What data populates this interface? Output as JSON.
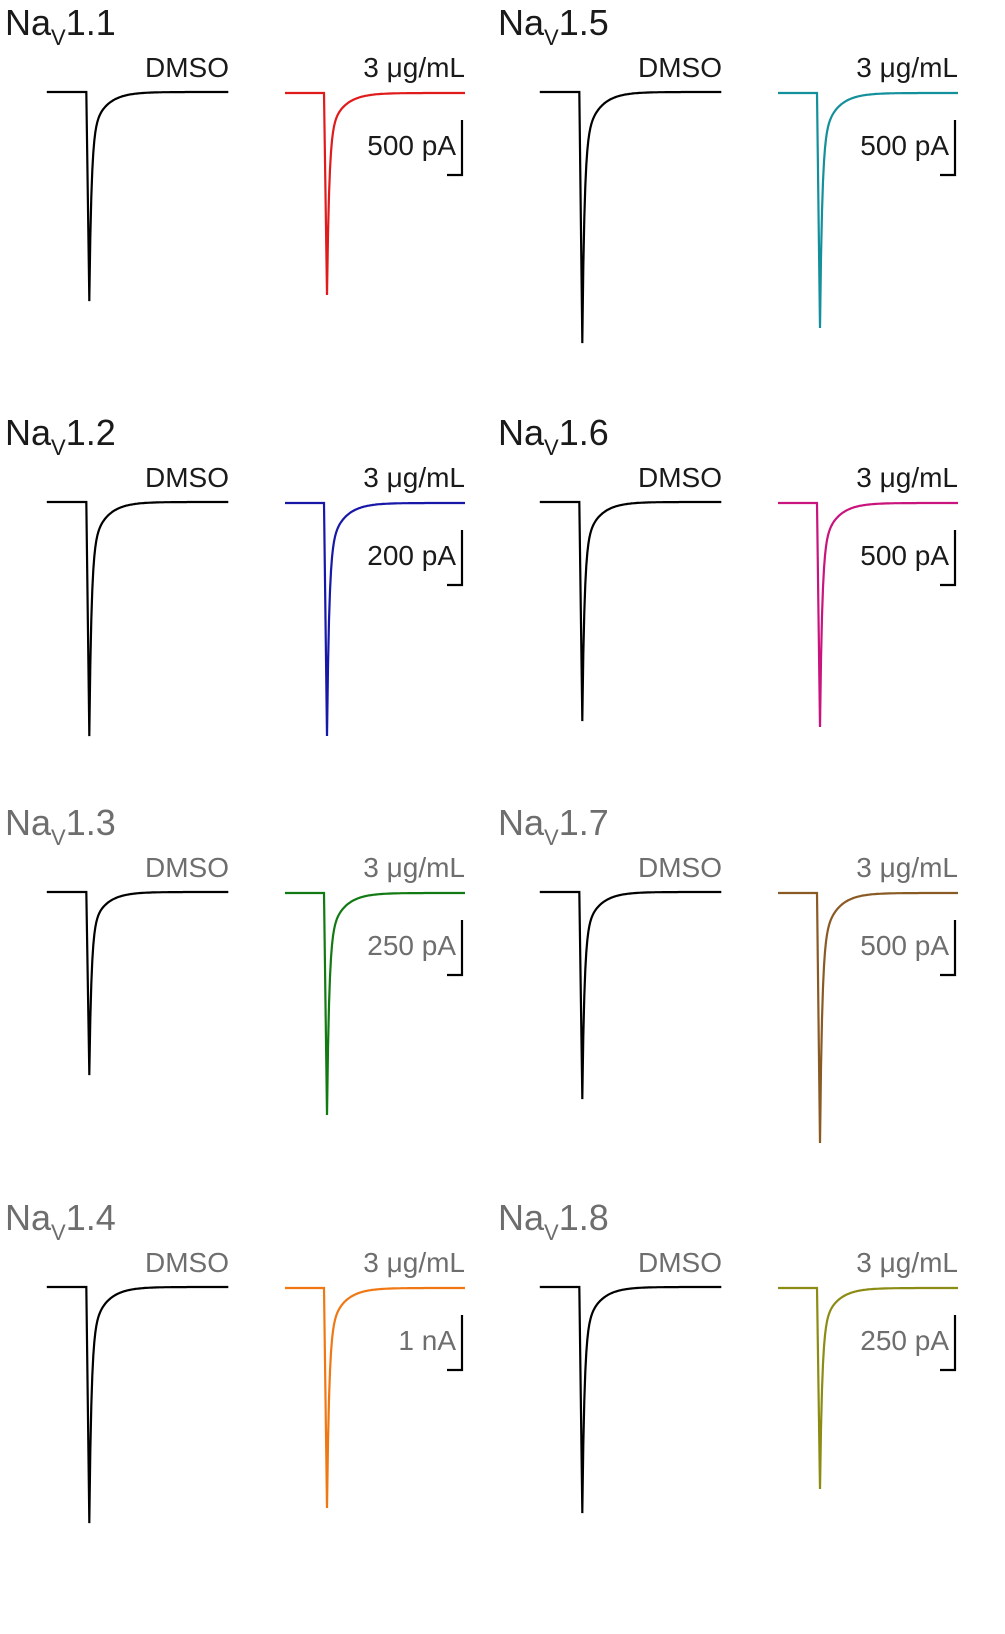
{
  "panels": [
    {
      "prefix": "Na",
      "sub": "V",
      "number": "1.1",
      "label_color": "#1a1a1a",
      "control": "DMSO",
      "treatment": "3 μg/mL",
      "scale": "500 pA",
      "color": "#e01b1b"
    },
    {
      "prefix": "Na",
      "sub": "V",
      "number": "1.5",
      "label_color": "#1a1a1a",
      "control": "DMSO",
      "treatment": "3 μg/mL",
      "scale": "500 pA",
      "color": "#13909c"
    },
    {
      "prefix": "Na",
      "sub": "V",
      "number": "1.2",
      "label_color": "#1a1a1a",
      "control": "DMSO",
      "treatment": "3 μg/mL",
      "scale": "200 pA",
      "color": "#1717a8"
    },
    {
      "prefix": "Na",
      "sub": "V",
      "number": "1.6",
      "label_color": "#1a1a1a",
      "control": "DMSO",
      "treatment": "3 μg/mL",
      "scale": "500 pA",
      "color": "#c8147c"
    },
    {
      "prefix": "Na",
      "sub": "V",
      "number": "1.3",
      "label_color": "#6e6e6e",
      "control": "DMSO",
      "treatment": "3 μg/mL",
      "scale": "250 pA",
      "color": "#127a12"
    },
    {
      "prefix": "Na",
      "sub": "V",
      "number": "1.7",
      "label_color": "#6e6e6e",
      "control": "DMSO",
      "treatment": "3 μg/mL",
      "scale": "500 pA",
      "color": "#8a5a24"
    },
    {
      "prefix": "Na",
      "sub": "V",
      "number": "1.4",
      "label_color": "#6e6e6e",
      "control": "DMSO",
      "treatment": "3 μg/mL",
      "scale": "1 nA",
      "color": "#f07814"
    },
    {
      "prefix": "Na",
      "sub": "V",
      "number": "1.8",
      "label_color": "#6e6e6e",
      "control": "DMSO",
      "treatment": "3 μg/mL",
      "scale": "250 pA",
      "color": "#8c8c14"
    }
  ]
}
